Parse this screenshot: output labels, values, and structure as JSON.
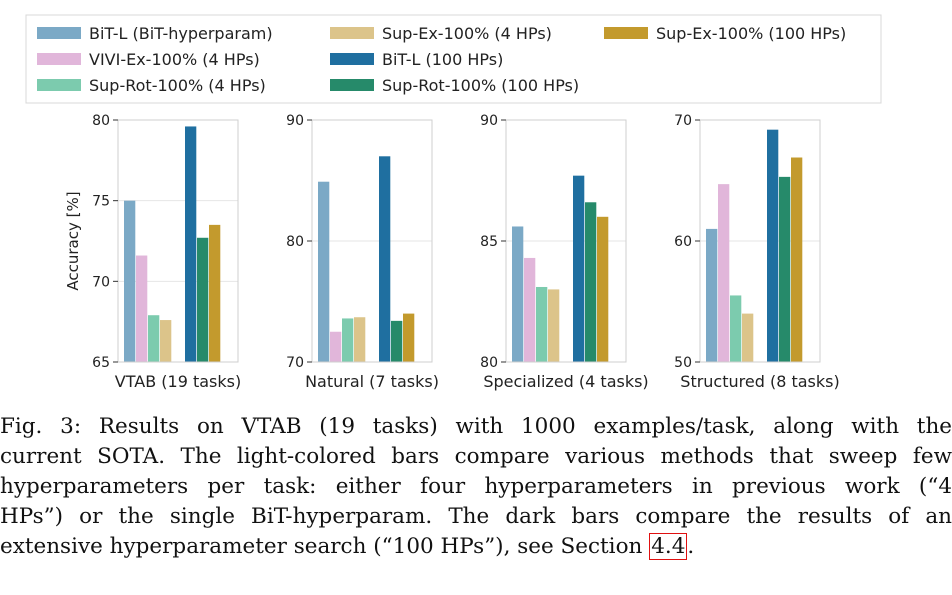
{
  "chart_data": {
    "type": "bar",
    "ylabel": "Accuracy [%]",
    "legend": {
      "location": "top",
      "entries": [
        {
          "label": "BiT-L (BiT-hyperparam)",
          "color": "#7ba9c6"
        },
        {
          "label": "VIVI-Ex-100% (4 HPs)",
          "color": "#e1b6da"
        },
        {
          "label": "Sup-Rot-100% (4 HPs)",
          "color": "#7ccbae"
        },
        {
          "label": "Sup-Ex-100% (4 HPs)",
          "color": "#dcc48a"
        },
        {
          "label": "BiT-L (100 HPs)",
          "color": "#1f6fa0"
        },
        {
          "label": "Sup-Rot-100% (100 HPs)",
          "color": "#268a6a"
        },
        {
          "label": "Sup-Ex-100% (100 HPs)",
          "color": "#c39a2d"
        }
      ]
    },
    "panels": [
      {
        "xlabel": "VTAB (19 tasks)",
        "ylim": [
          65,
          80
        ],
        "yticks": [
          65,
          70,
          75,
          80
        ],
        "values": [
          75.0,
          71.6,
          67.9,
          67.6,
          79.6,
          72.7,
          73.5
        ]
      },
      {
        "xlabel": "Natural (7 tasks)",
        "ylim": [
          70,
          90
        ],
        "yticks": [
          70,
          80,
          90
        ],
        "values": [
          84.9,
          72.5,
          73.6,
          73.7,
          87.0,
          73.4,
          74.0
        ]
      },
      {
        "xlabel": "Specialized (4 tasks)",
        "ylim": [
          80,
          90
        ],
        "yticks": [
          80,
          85,
          90
        ],
        "values": [
          85.6,
          84.3,
          83.1,
          83.0,
          87.7,
          86.6,
          86.0
        ]
      },
      {
        "xlabel": "Structured (8 tasks)",
        "ylim": [
          50,
          70
        ],
        "yticks": [
          50,
          60,
          70
        ],
        "values": [
          61.0,
          64.7,
          55.5,
          54.0,
          69.2,
          65.3,
          66.9
        ]
      }
    ]
  },
  "caption": {
    "prefix": "Fig. 3: ",
    "lines": [
      "Results on VTAB (19 tasks) with 1000 examples/task, along with the",
      "current SOTA. The light-colored bars compare various methods that sweep few",
      "hyperparameters per task: either four hyperparameters in previous work (“4",
      "HPs”) or the single BiT-hyperparam. The dark bars compare the results of an",
      "extensive hyperparameter search (“100 HPs”), see Section "
    ],
    "ref": "4.4",
    "suffix": "."
  }
}
